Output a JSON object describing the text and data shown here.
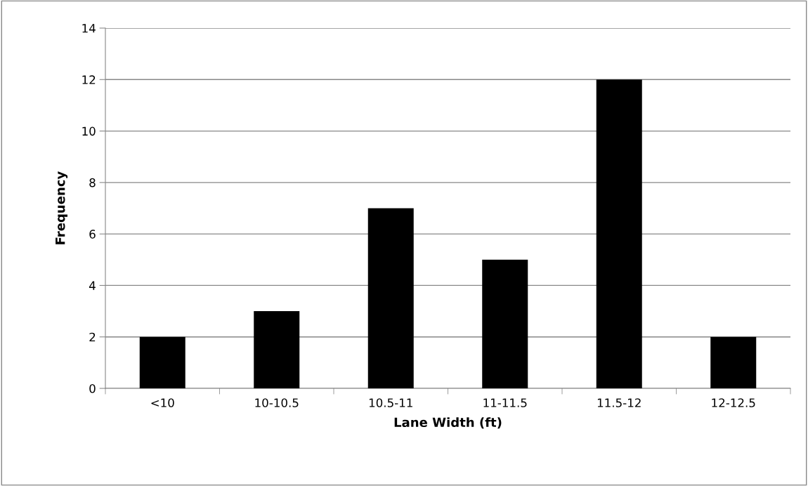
{
  "chart_data": {
    "type": "bar",
    "xlabel": "Lane Width (ft)",
    "ylabel": "Frequency",
    "categories": [
      "<10",
      "10-10.5",
      "10.5-11",
      "11-11.5",
      "11.5-12",
      "12-12.5"
    ],
    "values": [
      2,
      3,
      7,
      5,
      12,
      2
    ],
    "color": "#000000",
    "ylim": [
      0,
      14
    ],
    "yticks": [
      0,
      2,
      4,
      6,
      8,
      10,
      12,
      14
    ],
    "grid": "y",
    "legend": false
  }
}
